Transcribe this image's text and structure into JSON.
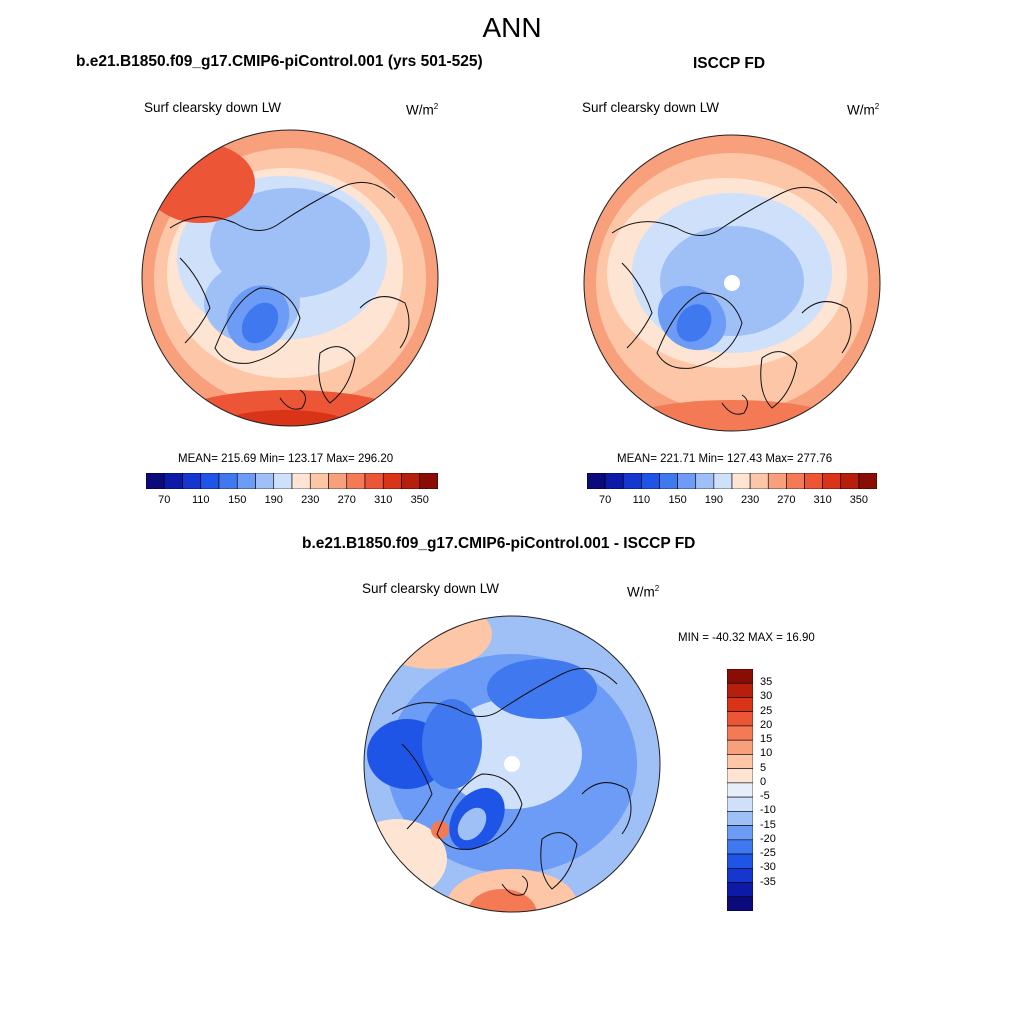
{
  "title": "ANN",
  "panels": {
    "model": {
      "title": "b.e21.B1850.f09_g17.CMIP6-piControl.001 (yrs 501-525)",
      "variable": "Surf clearsky down LW",
      "units_base": "W/m",
      "units_exp": "2",
      "stats": "MEAN= 215.69  Min= 123.17  Max= 296.20"
    },
    "obs": {
      "title": "ISCCP FD",
      "variable": "Surf clearsky down LW",
      "units_base": "W/m",
      "units_exp": "2",
      "stats": "MEAN= 221.71  Min= 127.43  Max= 277.76"
    },
    "diff": {
      "title": "b.e21.B1850.f09_g17.CMIP6-piControl.001 - ISCCP FD",
      "variable": "Surf clearsky down LW",
      "units_base": "W/m",
      "units_exp": "2",
      "stats": "MIN = -40.32 MAX =  16.90"
    }
  },
  "colorbar_abs": {
    "colors": [
      "#0a0a7a",
      "#0d1aa8",
      "#1537d0",
      "#1f55e6",
      "#3f78ef",
      "#6c9cf5",
      "#9fbff7",
      "#cfe0fa",
      "#fde4d3",
      "#fcc6a7",
      "#f8a07c",
      "#f47a55",
      "#ec5535",
      "#d93318",
      "#b61f0c",
      "#8a0d05"
    ],
    "tick_labels": [
      "70",
      "110",
      "150",
      "190",
      "230",
      "270",
      "310",
      "350"
    ]
  },
  "colorbar_diff": {
    "colors": [
      "#8a0d05",
      "#b61f0c",
      "#d93318",
      "#ec5535",
      "#f47a55",
      "#f8a07c",
      "#fcc6a7",
      "#fde4d3",
      "#e6eefa",
      "#cfe0fa",
      "#9fbff7",
      "#6c9cf5",
      "#3f78ef",
      "#1f55e6",
      "#1537d0",
      "#0d1aa8",
      "#0a0a7a"
    ],
    "tick_labels": [
      "35",
      "30",
      "25",
      "20",
      "15",
      "10",
      "5",
      "0",
      "-5",
      "-10",
      "-15",
      "-20",
      "-25",
      "-30",
      "-35"
    ]
  }
}
